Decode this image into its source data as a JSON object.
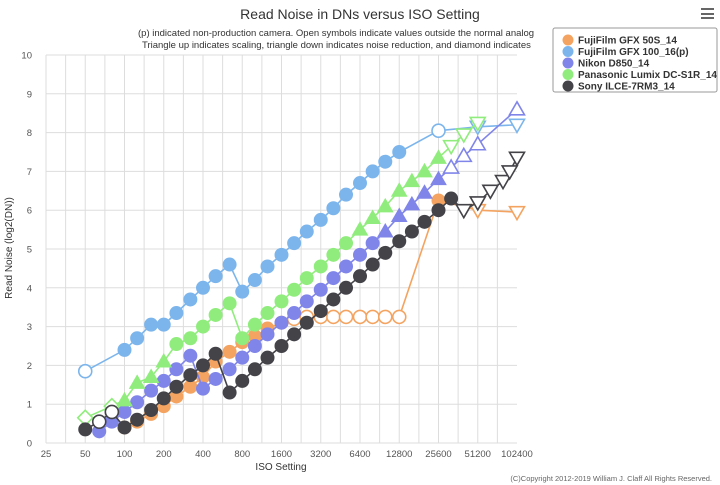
{
  "menu_icon": "hamburger-menu-icon",
  "chart_data": {
    "type": "scatter",
    "title": "Read Noise in DNs versus ISO Setting",
    "subtitle_lines": [
      "(p) indicated non-production camera. Open symbols indicate values outside the normal analog",
      "Triangle up indicates scaling, triangle down indicates noise reduction, and diamond indicates"
    ],
    "xlabel": "ISO Setting",
    "ylabel": "Read Noise (log2(DN))",
    "credits": "(C)Copyright 2012-2019 William J. Claff All Rights Reserved.",
    "x_scale": "log2",
    "xlim": [
      25,
      102400
    ],
    "ylim": [
      0,
      10
    ],
    "x_ticks": [
      25,
      50,
      100,
      200,
      400,
      800,
      1600,
      3200,
      6400,
      12800,
      25600,
      51200,
      102400
    ],
    "y_ticks": [
      0,
      1,
      2,
      3,
      4,
      5,
      6,
      7,
      8,
      9,
      10
    ],
    "grid": true,
    "legend_position": "top-right",
    "series": [
      {
        "name": "FujiFilm GFX 50S_14",
        "color": "#f4a460",
        "points": [
          {
            "x": 100,
            "y": 0.4,
            "s": "circle",
            "open": false
          },
          {
            "x": 125,
            "y": 0.55,
            "s": "circle",
            "open": false
          },
          {
            "x": 160,
            "y": 0.75,
            "s": "circle",
            "open": false
          },
          {
            "x": 200,
            "y": 0.95,
            "s": "circle",
            "open": false
          },
          {
            "x": 250,
            "y": 1.2,
            "s": "circle",
            "open": false
          },
          {
            "x": 320,
            "y": 1.45,
            "s": "circle",
            "open": false
          },
          {
            "x": 400,
            "y": 1.7,
            "s": "circle",
            "open": false
          },
          {
            "x": 500,
            "y": 2.1,
            "s": "circle",
            "open": false
          },
          {
            "x": 640,
            "y": 2.35,
            "s": "circle",
            "open": false
          },
          {
            "x": 800,
            "y": 2.6,
            "s": "circle",
            "open": false
          },
          {
            "x": 1000,
            "y": 2.75,
            "s": "circle",
            "open": false
          },
          {
            "x": 1250,
            "y": 2.95,
            "s": "circle",
            "open": false
          },
          {
            "x": 1600,
            "y": 3.1,
            "s": "circle",
            "open": false
          },
          {
            "x": 2000,
            "y": 3.2,
            "s": "circle",
            "open": true
          },
          {
            "x": 2500,
            "y": 3.25,
            "s": "circle",
            "open": true
          },
          {
            "x": 3200,
            "y": 3.25,
            "s": "circle",
            "open": true
          },
          {
            "x": 4000,
            "y": 3.25,
            "s": "circle",
            "open": true
          },
          {
            "x": 5000,
            "y": 3.25,
            "s": "circle",
            "open": true
          },
          {
            "x": 6400,
            "y": 3.25,
            "s": "circle",
            "open": true
          },
          {
            "x": 8000,
            "y": 3.25,
            "s": "circle",
            "open": true
          },
          {
            "x": 10000,
            "y": 3.25,
            "s": "circle",
            "open": true
          },
          {
            "x": 12800,
            "y": 3.25,
            "s": "circle",
            "open": true
          },
          {
            "x": 25600,
            "y": 6.25,
            "s": "circle",
            "open": false
          },
          {
            "x": 51200,
            "y": 6.0,
            "s": "tri-down",
            "open": true
          },
          {
            "x": 102400,
            "y": 5.95,
            "s": "tri-down",
            "open": true
          }
        ]
      },
      {
        "name": "FujiFilm GFX 100_16(p)",
        "color": "#7cb5ec",
        "points": [
          {
            "x": 50,
            "y": 1.85,
            "s": "circle",
            "open": true
          },
          {
            "x": 100,
            "y": 2.4,
            "s": "circle",
            "open": false
          },
          {
            "x": 125,
            "y": 2.7,
            "s": "circle",
            "open": false
          },
          {
            "x": 160,
            "y": 3.05,
            "s": "circle",
            "open": false
          },
          {
            "x": 200,
            "y": 3.05,
            "s": "circle",
            "open": false
          },
          {
            "x": 250,
            "y": 3.35,
            "s": "circle",
            "open": false
          },
          {
            "x": 320,
            "y": 3.7,
            "s": "circle",
            "open": false
          },
          {
            "x": 400,
            "y": 4.0,
            "s": "circle",
            "open": false
          },
          {
            "x": 500,
            "y": 4.3,
            "s": "circle",
            "open": false
          },
          {
            "x": 640,
            "y": 4.6,
            "s": "circle",
            "open": false
          },
          {
            "x": 800,
            "y": 3.9,
            "s": "circle",
            "open": false
          },
          {
            "x": 1000,
            "y": 4.2,
            "s": "circle",
            "open": false
          },
          {
            "x": 1250,
            "y": 4.55,
            "s": "circle",
            "open": false
          },
          {
            "x": 1600,
            "y": 4.85,
            "s": "circle",
            "open": false
          },
          {
            "x": 2000,
            "y": 5.15,
            "s": "circle",
            "open": false
          },
          {
            "x": 2500,
            "y": 5.45,
            "s": "circle",
            "open": false
          },
          {
            "x": 3200,
            "y": 5.75,
            "s": "circle",
            "open": false
          },
          {
            "x": 4000,
            "y": 6.05,
            "s": "circle",
            "open": false
          },
          {
            "x": 5000,
            "y": 6.4,
            "s": "circle",
            "open": false
          },
          {
            "x": 6400,
            "y": 6.7,
            "s": "circle",
            "open": false
          },
          {
            "x": 8000,
            "y": 7.0,
            "s": "circle",
            "open": false
          },
          {
            "x": 10000,
            "y": 7.25,
            "s": "circle",
            "open": false
          },
          {
            "x": 12800,
            "y": 7.5,
            "s": "circle",
            "open": false
          },
          {
            "x": 25600,
            "y": 8.05,
            "s": "circle",
            "open": true
          },
          {
            "x": 51200,
            "y": 8.15,
            "s": "tri-down",
            "open": true
          },
          {
            "x": 102400,
            "y": 8.2,
            "s": "tri-down",
            "open": true
          }
        ]
      },
      {
        "name": "Nikon D850_14",
        "color": "#8085e9",
        "points": [
          {
            "x": 64,
            "y": 0.3,
            "s": "circle",
            "open": false
          },
          {
            "x": 80,
            "y": 0.55,
            "s": "circle",
            "open": false
          },
          {
            "x": 100,
            "y": 0.8,
            "s": "circle",
            "open": false
          },
          {
            "x": 125,
            "y": 1.05,
            "s": "circle",
            "open": false
          },
          {
            "x": 160,
            "y": 1.35,
            "s": "circle",
            "open": false
          },
          {
            "x": 200,
            "y": 1.6,
            "s": "circle",
            "open": false
          },
          {
            "x": 250,
            "y": 1.9,
            "s": "circle",
            "open": false
          },
          {
            "x": 320,
            "y": 2.25,
            "s": "circle",
            "open": false
          },
          {
            "x": 400,
            "y": 1.4,
            "s": "circle",
            "open": false
          },
          {
            "x": 500,
            "y": 1.65,
            "s": "circle",
            "open": false
          },
          {
            "x": 640,
            "y": 1.9,
            "s": "circle",
            "open": false
          },
          {
            "x": 800,
            "y": 2.2,
            "s": "circle",
            "open": false
          },
          {
            "x": 1000,
            "y": 2.5,
            "s": "circle",
            "open": false
          },
          {
            "x": 1250,
            "y": 2.8,
            "s": "circle",
            "open": false
          },
          {
            "x": 1600,
            "y": 3.1,
            "s": "circle",
            "open": false
          },
          {
            "x": 2000,
            "y": 3.35,
            "s": "circle",
            "open": false
          },
          {
            "x": 2500,
            "y": 3.65,
            "s": "circle",
            "open": false
          },
          {
            "x": 3200,
            "y": 3.95,
            "s": "circle",
            "open": false
          },
          {
            "x": 4000,
            "y": 4.25,
            "s": "circle",
            "open": false
          },
          {
            "x": 5000,
            "y": 4.55,
            "s": "circle",
            "open": false
          },
          {
            "x": 6400,
            "y": 4.85,
            "s": "circle",
            "open": false
          },
          {
            "x": 8000,
            "y": 5.15,
            "s": "circle",
            "open": false
          },
          {
            "x": 10000,
            "y": 5.45,
            "s": "tri-up",
            "open": false
          },
          {
            "x": 12800,
            "y": 5.85,
            "s": "tri-up",
            "open": false
          },
          {
            "x": 16000,
            "y": 6.15,
            "s": "tri-up",
            "open": false
          },
          {
            "x": 20000,
            "y": 6.45,
            "s": "tri-up",
            "open": false
          },
          {
            "x": 25600,
            "y": 6.8,
            "s": "tri-up",
            "open": false
          },
          {
            "x": 32000,
            "y": 7.1,
            "s": "tri-up",
            "open": true
          },
          {
            "x": 40000,
            "y": 7.4,
            "s": "tri-up",
            "open": true
          },
          {
            "x": 51200,
            "y": 7.7,
            "s": "tri-up",
            "open": true
          },
          {
            "x": 102400,
            "y": 8.6,
            "s": "tri-up",
            "open": true
          }
        ]
      },
      {
        "name": "Panasonic Lumix DC-S1R_14",
        "color": "#90ed7d",
        "points": [
          {
            "x": 50,
            "y": 0.65,
            "s": "diamond",
            "open": true
          },
          {
            "x": 80,
            "y": 0.95,
            "s": "diamond",
            "open": true
          },
          {
            "x": 100,
            "y": 1.1,
            "s": "tri-up",
            "open": false
          },
          {
            "x": 125,
            "y": 1.55,
            "s": "tri-up",
            "open": false
          },
          {
            "x": 160,
            "y": 1.7,
            "s": "tri-up",
            "open": false
          },
          {
            "x": 200,
            "y": 2.1,
            "s": "tri-up",
            "open": false
          },
          {
            "x": 250,
            "y": 2.55,
            "s": "circle",
            "open": false
          },
          {
            "x": 320,
            "y": 2.7,
            "s": "circle",
            "open": false
          },
          {
            "x": 400,
            "y": 3.0,
            "s": "circle",
            "open": false
          },
          {
            "x": 500,
            "y": 3.3,
            "s": "circle",
            "open": false
          },
          {
            "x": 640,
            "y": 3.6,
            "s": "circle",
            "open": false
          },
          {
            "x": 800,
            "y": 2.7,
            "s": "circle",
            "open": false
          },
          {
            "x": 1000,
            "y": 3.05,
            "s": "circle",
            "open": false
          },
          {
            "x": 1250,
            "y": 3.35,
            "s": "circle",
            "open": false
          },
          {
            "x": 1600,
            "y": 3.65,
            "s": "circle",
            "open": false
          },
          {
            "x": 2000,
            "y": 3.95,
            "s": "circle",
            "open": false
          },
          {
            "x": 2500,
            "y": 4.25,
            "s": "circle",
            "open": false
          },
          {
            "x": 3200,
            "y": 4.55,
            "s": "circle",
            "open": false
          },
          {
            "x": 4000,
            "y": 4.85,
            "s": "circle",
            "open": false
          },
          {
            "x": 5000,
            "y": 5.15,
            "s": "circle",
            "open": false
          },
          {
            "x": 6400,
            "y": 5.5,
            "s": "tri-up",
            "open": false
          },
          {
            "x": 8000,
            "y": 5.8,
            "s": "tri-up",
            "open": false
          },
          {
            "x": 10000,
            "y": 6.1,
            "s": "tri-up",
            "open": false
          },
          {
            "x": 12800,
            "y": 6.5,
            "s": "tri-up",
            "open": false
          },
          {
            "x": 16000,
            "y": 6.75,
            "s": "tri-up",
            "open": false
          },
          {
            "x": 20000,
            "y": 7.0,
            "s": "tri-up",
            "open": false
          },
          {
            "x": 25600,
            "y": 7.35,
            "s": "tri-up",
            "open": false
          },
          {
            "x": 32000,
            "y": 7.65,
            "s": "tri-down",
            "open": true
          },
          {
            "x": 40000,
            "y": 7.95,
            "s": "tri-down",
            "open": true
          },
          {
            "x": 51200,
            "y": 8.25,
            "s": "tri-down",
            "open": true
          }
        ]
      },
      {
        "name": "Sony ILCE-7RM3_14",
        "color": "#434348",
        "points": [
          {
            "x": 50,
            "y": 0.35,
            "s": "circle",
            "open": false
          },
          {
            "x": 64,
            "y": 0.55,
            "s": "circle",
            "open": true
          },
          {
            "x": 80,
            "y": 0.8,
            "s": "circle",
            "open": true
          },
          {
            "x": 100,
            "y": 0.4,
            "s": "circle",
            "open": false
          },
          {
            "x": 125,
            "y": 0.6,
            "s": "circle",
            "open": false
          },
          {
            "x": 160,
            "y": 0.85,
            "s": "circle",
            "open": false
          },
          {
            "x": 200,
            "y": 1.15,
            "s": "circle",
            "open": false
          },
          {
            "x": 250,
            "y": 1.45,
            "s": "circle",
            "open": false
          },
          {
            "x": 320,
            "y": 1.75,
            "s": "circle",
            "open": false
          },
          {
            "x": 400,
            "y": 2.0,
            "s": "circle",
            "open": false
          },
          {
            "x": 500,
            "y": 2.3,
            "s": "circle",
            "open": false
          },
          {
            "x": 640,
            "y": 1.3,
            "s": "circle",
            "open": false
          },
          {
            "x": 800,
            "y": 1.6,
            "s": "circle",
            "open": false
          },
          {
            "x": 1000,
            "y": 1.9,
            "s": "circle",
            "open": false
          },
          {
            "x": 1250,
            "y": 2.2,
            "s": "circle",
            "open": false
          },
          {
            "x": 1600,
            "y": 2.5,
            "s": "circle",
            "open": false
          },
          {
            "x": 2000,
            "y": 2.8,
            "s": "circle",
            "open": false
          },
          {
            "x": 2500,
            "y": 3.1,
            "s": "circle",
            "open": false
          },
          {
            "x": 3200,
            "y": 3.4,
            "s": "circle",
            "open": false
          },
          {
            "x": 4000,
            "y": 3.7,
            "s": "circle",
            "open": false
          },
          {
            "x": 5000,
            "y": 4.0,
            "s": "circle",
            "open": false
          },
          {
            "x": 6400,
            "y": 4.3,
            "s": "circle",
            "open": false
          },
          {
            "x": 8000,
            "y": 4.6,
            "s": "circle",
            "open": false
          },
          {
            "x": 10000,
            "y": 4.9,
            "s": "circle",
            "open": false
          },
          {
            "x": 12800,
            "y": 5.2,
            "s": "circle",
            "open": false
          },
          {
            "x": 16000,
            "y": 5.45,
            "s": "circle",
            "open": false
          },
          {
            "x": 20000,
            "y": 5.7,
            "s": "circle",
            "open": false
          },
          {
            "x": 25600,
            "y": 6.0,
            "s": "circle",
            "open": false
          },
          {
            "x": 32000,
            "y": 6.3,
            "s": "circle",
            "open": false
          },
          {
            "x": 40000,
            "y": 6.0,
            "s": "tri-down",
            "open": true
          },
          {
            "x": 51200,
            "y": 6.2,
            "s": "tri-down",
            "open": true
          },
          {
            "x": 64000,
            "y": 6.5,
            "s": "tri-down",
            "open": true
          },
          {
            "x": 80000,
            "y": 6.75,
            "s": "tri-down",
            "open": true
          },
          {
            "x": 90000,
            "y": 7.0,
            "s": "tri-down",
            "open": true
          },
          {
            "x": 102400,
            "y": 7.35,
            "s": "tri-down",
            "open": true
          }
        ]
      }
    ]
  }
}
